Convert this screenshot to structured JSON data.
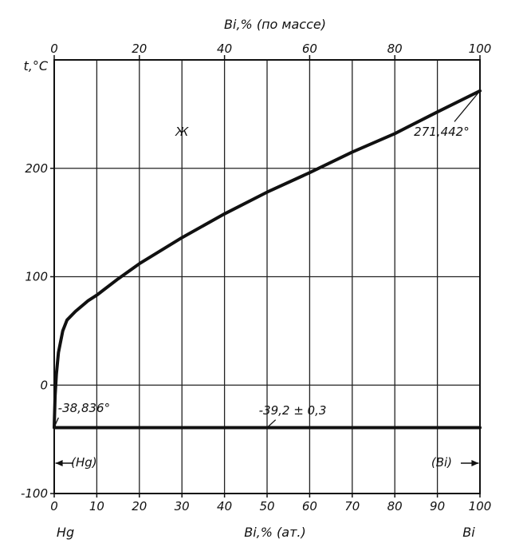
{
  "chart_data": {
    "type": "line",
    "title": "",
    "top_axis": {
      "label": "Bi,% (по массе)",
      "ticks": [
        "0",
        "20",
        "40",
        "60",
        "80",
        "100"
      ],
      "tick_values": [
        0,
        20,
        40,
        60,
        80,
        100
      ]
    },
    "bottom_axis": {
      "label": "Bi,% (ат.)",
      "ticks": [
        "0",
        "10",
        "20",
        "30",
        "40",
        "50",
        "60",
        "70",
        "80",
        "90",
        "100"
      ],
      "tick_values": [
        0,
        10,
        20,
        30,
        40,
        50,
        60,
        70,
        80,
        90,
        100
      ],
      "left_end_label": "Hg",
      "right_end_label": "Bi"
    },
    "y_axis": {
      "label": "t,°C",
      "ticks": [
        "200",
        "100",
        "0",
        "-100"
      ],
      "tick_values": [
        200,
        100,
        0,
        -100
      ]
    },
    "xlim": [
      0,
      100
    ],
    "ylim": [
      -100,
      300
    ],
    "grid": true,
    "series": [
      {
        "x": [
          0,
          0.2,
          0.5,
          1,
          2,
          3,
          5,
          8,
          10,
          15,
          20,
          30,
          40,
          50,
          60,
          70,
          80,
          90,
          100
        ],
        "y": [
          -38.836,
          -10,
          10,
          30,
          50,
          60,
          68,
          78,
          83,
          98,
          112,
          136,
          158,
          178,
          196,
          215,
          232,
          252,
          271.442
        ]
      },
      {
        "x": [
          0,
          100
        ],
        "y": [
          -39.2,
          -39.2
        ]
      }
    ],
    "annotations": [
      {
        "text": "Ж",
        "x": 30,
        "y": 230
      },
      {
        "text": "271,442°",
        "x": 91,
        "y": 230
      },
      {
        "text": "-38,836°",
        "x": 7,
        "y": -25
      },
      {
        "text": "-39,2 ± 0,3",
        "x": 56,
        "y": -27
      },
      {
        "text": "(Hg)",
        "x": 7,
        "y": -75
      },
      {
        "text": "(Bi)",
        "x": 91,
        "y": -75
      }
    ]
  }
}
